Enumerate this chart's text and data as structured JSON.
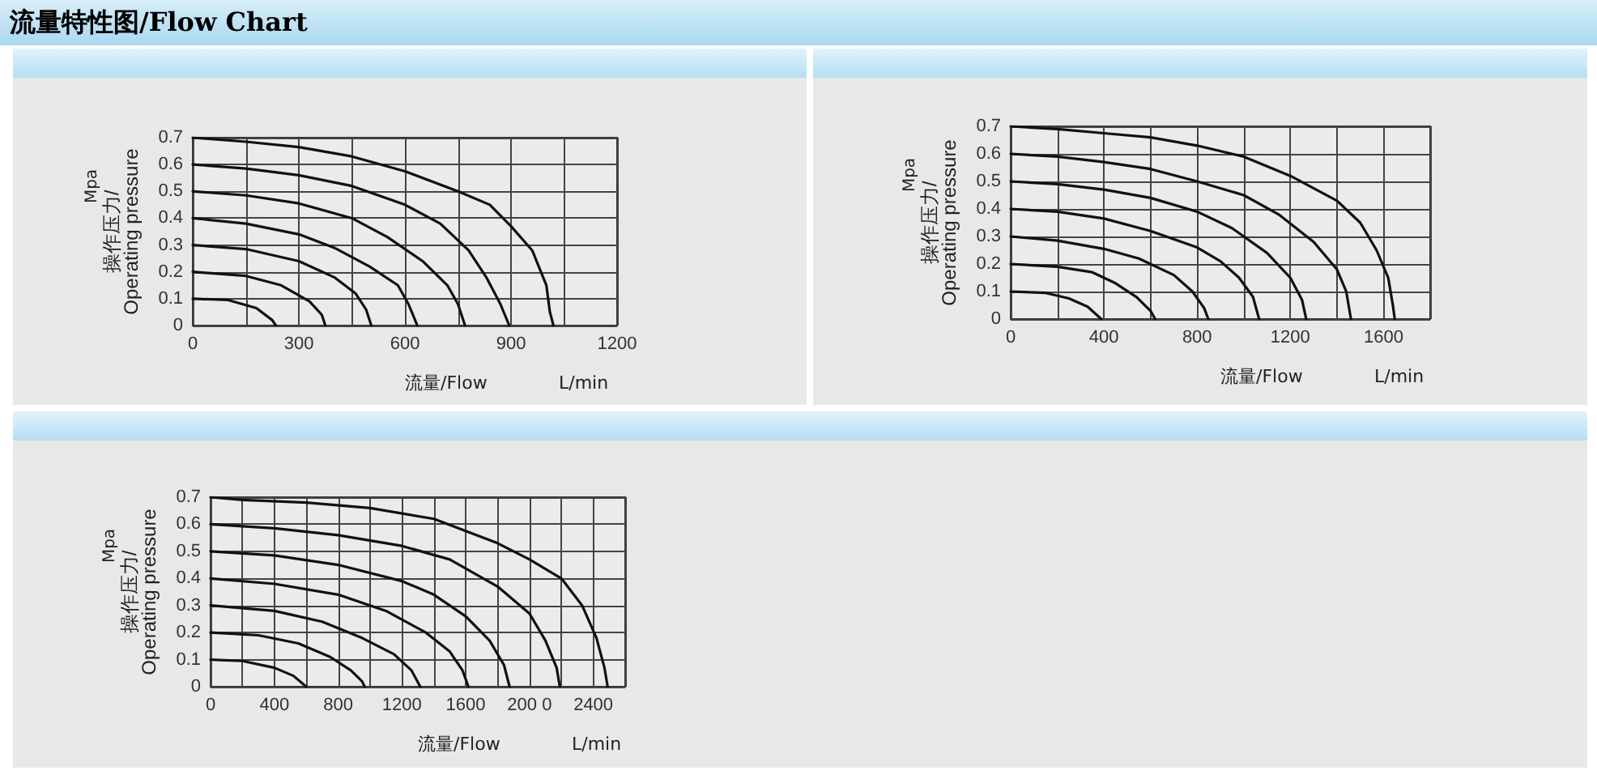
{
  "chart_data": [
    {
      "type": "line",
      "title": "流量特性图/Flow Chart",
      "xlabel": "流量/Flow",
      "ylabel": "操作压力/Operating pressure",
      "annotations": [
        "Mpa",
        "L/min"
      ],
      "xlim": [
        0,
        1200
      ],
      "xticks": [
        0,
        {
          "value": 150,
          "label": null
        },
        300,
        {
          "value": 450,
          "label": null
        },
        600,
        {
          "value": 750,
          "label": null
        },
        900,
        {
          "value": 1050,
          "label": null
        },
        1200
      ],
      "ylim": [
        0,
        0.7
      ],
      "yticks": [
        0,
        0.1,
        0.2,
        0.3,
        0.4,
        0.5,
        0.6,
        0.7
      ],
      "grid": true,
      "marker": "none",
      "line_style": "solid",
      "series": [
        {
          "color": "#111111",
          "x": [
            0,
            150,
            300,
            450,
            600,
            750,
            840,
            900,
            960,
            1000,
            1010,
            1020
          ],
          "values": [
            0.7,
            0.685,
            0.665,
            0.63,
            0.575,
            0.5,
            0.45,
            0.37,
            0.28,
            0.15,
            0.05,
            0
          ]
        },
        {
          "color": "#111111",
          "x": [
            0,
            150,
            300,
            450,
            600,
            700,
            780,
            830,
            870,
            895
          ],
          "values": [
            0.6,
            0.585,
            0.56,
            0.52,
            0.45,
            0.38,
            0.28,
            0.18,
            0.08,
            0
          ]
        },
        {
          "color": "#111111",
          "x": [
            0,
            150,
            300,
            450,
            550,
            650,
            720,
            750,
            770
          ],
          "values": [
            0.5,
            0.485,
            0.455,
            0.4,
            0.33,
            0.24,
            0.15,
            0.08,
            0
          ]
        },
        {
          "color": "#111111",
          "x": [
            0,
            150,
            300,
            400,
            500,
            580,
            610,
            635
          ],
          "values": [
            0.4,
            0.38,
            0.34,
            0.29,
            0.22,
            0.15,
            0.08,
            0
          ]
        },
        {
          "color": "#111111",
          "x": [
            0,
            150,
            300,
            400,
            460,
            490,
            505
          ],
          "values": [
            0.3,
            0.285,
            0.24,
            0.18,
            0.12,
            0.06,
            0
          ]
        },
        {
          "color": "#111111",
          "x": [
            0,
            150,
            250,
            330,
            365,
            375
          ],
          "values": [
            0.2,
            0.185,
            0.15,
            0.09,
            0.04,
            0
          ]
        },
        {
          "color": "#111111",
          "x": [
            0,
            100,
            180,
            225,
            235
          ],
          "values": [
            0.1,
            0.095,
            0.065,
            0.02,
            0
          ]
        }
      ]
    },
    {
      "type": "line",
      "xlabel": "流量/Flow",
      "ylabel": "操作压力/Operating pressure",
      "annotations": [
        "Mpa",
        "L/min"
      ],
      "xlim": [
        0,
        1800
      ],
      "xticks": [
        0,
        {
          "value": 200,
          "label": null
        },
        400,
        {
          "value": 600,
          "label": null
        },
        800,
        {
          "value": 1000,
          "label": null
        },
        1200,
        {
          "value": 1400,
          "label": null
        },
        1600,
        {
          "value": 1800,
          "label": null
        }
      ],
      "ylim": [
        0,
        0.7
      ],
      "yticks": [
        0,
        0.1,
        0.2,
        0.3,
        0.4,
        0.5,
        0.6,
        0.7
      ],
      "grid": true,
      "marker": "none",
      "line_style": "solid",
      "series": [
        {
          "color": "#111111",
          "x": [
            0,
            200,
            400,
            600,
            800,
            1000,
            1200,
            1400,
            1500,
            1570,
            1620,
            1640,
            1648
          ],
          "values": [
            0.7,
            0.69,
            0.675,
            0.66,
            0.63,
            0.59,
            0.52,
            0.43,
            0.35,
            0.25,
            0.15,
            0.05,
            0
          ]
        },
        {
          "color": "#111111",
          "x": [
            0,
            200,
            400,
            600,
            800,
            1000,
            1150,
            1300,
            1400,
            1440,
            1460
          ],
          "values": [
            0.6,
            0.59,
            0.57,
            0.545,
            0.5,
            0.45,
            0.38,
            0.28,
            0.18,
            0.1,
            0
          ]
        },
        {
          "color": "#111111",
          "x": [
            0,
            200,
            400,
            600,
            800,
            950,
            1100,
            1200,
            1250,
            1268
          ],
          "values": [
            0.5,
            0.49,
            0.47,
            0.44,
            0.39,
            0.33,
            0.24,
            0.15,
            0.07,
            0
          ]
        },
        {
          "color": "#111111",
          "x": [
            0,
            200,
            400,
            600,
            800,
            900,
            980,
            1040,
            1066
          ],
          "values": [
            0.4,
            0.39,
            0.365,
            0.32,
            0.26,
            0.21,
            0.15,
            0.08,
            0
          ]
        },
        {
          "color": "#111111",
          "x": [
            0,
            200,
            400,
            550,
            700,
            780,
            830,
            848
          ],
          "values": [
            0.3,
            0.285,
            0.255,
            0.22,
            0.16,
            0.1,
            0.04,
            0
          ]
        },
        {
          "color": "#111111",
          "x": [
            0,
            200,
            350,
            450,
            540,
            600,
            620
          ],
          "values": [
            0.2,
            0.19,
            0.17,
            0.13,
            0.08,
            0.03,
            0
          ]
        },
        {
          "color": "#111111",
          "x": [
            0,
            150,
            250,
            330,
            389
          ],
          "values": [
            0.1,
            0.095,
            0.075,
            0.045,
            0
          ]
        }
      ]
    },
    {
      "type": "line",
      "xlabel": "流量/Flow",
      "ylabel": "操作压力/Operating pressure",
      "annotations": [
        "Mpa",
        "L/min"
      ],
      "xlim": [
        0,
        2600
      ],
      "xticks": [
        0,
        {
          "value": 200,
          "label": null
        },
        400,
        {
          "value": 600,
          "label": null
        },
        800,
        {
          "value": 1000,
          "label": null
        },
        1200,
        {
          "value": 1400,
          "label": null
        },
        1600,
        {
          "value": 1800,
          "label": null
        },
        {
          "value": 2000,
          "label": "200 0"
        },
        {
          "value": 2200,
          "label": null
        },
        2400,
        {
          "value": 2600,
          "label": null
        }
      ],
      "ylim": [
        0,
        0.7
      ],
      "yticks": [
        0,
        0.1,
        0.2,
        0.3,
        0.4,
        0.5,
        0.6,
        0.7
      ],
      "grid": true,
      "marker": "none",
      "line_style": "solid",
      "series": [
        {
          "color": "#111111",
          "x": [
            0,
            200,
            600,
            1000,
            1400,
            1800,
            2000,
            2200,
            2330,
            2420,
            2470,
            2490
          ],
          "values": [
            0.7,
            0.69,
            0.68,
            0.66,
            0.62,
            0.53,
            0.47,
            0.4,
            0.3,
            0.18,
            0.07,
            0
          ]
        },
        {
          "color": "#111111",
          "x": [
            0,
            400,
            800,
            1200,
            1500,
            1800,
            2000,
            2100,
            2170,
            2190
          ],
          "values": [
            0.6,
            0.585,
            0.56,
            0.52,
            0.47,
            0.37,
            0.27,
            0.17,
            0.07,
            0
          ]
        },
        {
          "color": "#111111",
          "x": [
            0,
            400,
            800,
            1200,
            1400,
            1600,
            1750,
            1840,
            1875
          ],
          "values": [
            0.5,
            0.485,
            0.45,
            0.39,
            0.34,
            0.26,
            0.17,
            0.08,
            0
          ]
        },
        {
          "color": "#111111",
          "x": [
            0,
            400,
            800,
            1100,
            1350,
            1500,
            1580,
            1617
          ],
          "values": [
            0.4,
            0.38,
            0.34,
            0.28,
            0.2,
            0.13,
            0.06,
            0
          ]
        },
        {
          "color": "#111111",
          "x": [
            0,
            400,
            700,
            950,
            1150,
            1260,
            1315
          ],
          "values": [
            0.3,
            0.28,
            0.24,
            0.18,
            0.12,
            0.06,
            0
          ]
        },
        {
          "color": "#111111",
          "x": [
            0,
            300,
            550,
            750,
            880,
            950,
            966
          ],
          "values": [
            0.2,
            0.19,
            0.16,
            0.11,
            0.06,
            0.02,
            0
          ]
        },
        {
          "color": "#111111",
          "x": [
            0,
            200,
            400,
            520,
            600
          ],
          "values": [
            0.1,
            0.095,
            0.07,
            0.04,
            0
          ]
        }
      ]
    }
  ]
}
